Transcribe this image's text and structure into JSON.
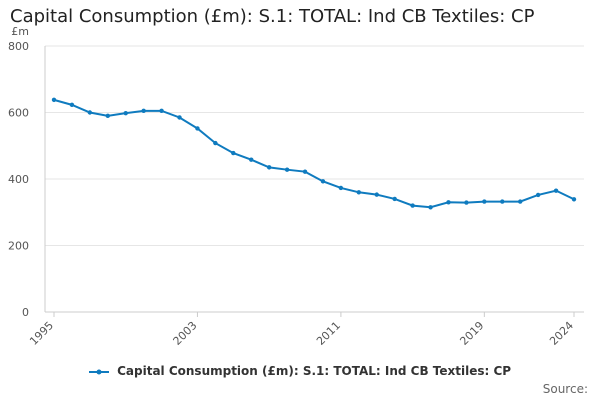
{
  "chart_data": {
    "type": "line",
    "title": "Capital Consumption (£m): S.1: TOTAL: Ind CB Textiles: CP",
    "ylabel": "£m",
    "xlabel": "",
    "ylim": [
      0,
      800
    ],
    "yticks": [
      0,
      200,
      400,
      600,
      800
    ],
    "xlim": [
      1995,
      2024
    ],
    "xticks": [
      1995,
      2003,
      2011,
      2019,
      2024
    ],
    "legend_position": "bottom",
    "grid": true,
    "series": [
      {
        "name": "Capital Consumption (£m): S.1: TOTAL: Ind CB Textiles: CP",
        "color": "#0f7bbf",
        "x": [
          1995,
          1996,
          1997,
          1998,
          1999,
          2000,
          2001,
          2002,
          2003,
          2004,
          2005,
          2006,
          2007,
          2008,
          2009,
          2010,
          2011,
          2012,
          2013,
          2014,
          2015,
          2016,
          2017,
          2018,
          2019,
          2020,
          2021,
          2022,
          2023,
          2024
        ],
        "values": [
          638,
          623,
          600,
          590,
          598,
          605,
          605,
          585,
          552,
          508,
          478,
          458,
          435,
          428,
          422,
          393,
          373,
          360,
          353,
          340,
          320,
          315,
          330,
          329,
          332,
          332,
          332,
          352,
          365,
          339
        ]
      }
    ]
  },
  "source_label": "Source:"
}
